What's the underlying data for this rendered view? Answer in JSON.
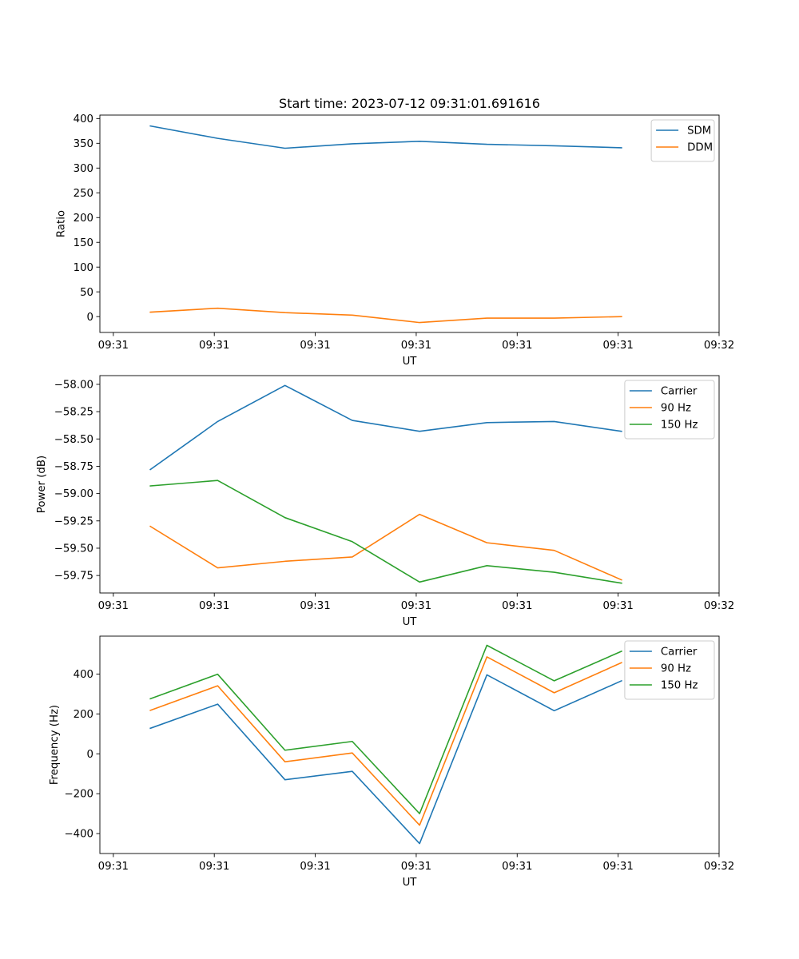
{
  "chart_data": [
    {
      "type": "line",
      "title": "Start time: 2023-07-12 09:31:01.691616",
      "xlabel": "UT",
      "ylabel": "Ratio",
      "x": [
        0,
        1,
        2,
        3,
        4,
        5,
        6,
        7
      ],
      "xlim": [
        -0.75,
        8.45
      ],
      "x_ticks": [
        -0.55,
        0.95,
        2.45,
        3.95,
        5.45,
        6.95,
        8.45
      ],
      "x_tick_labels": [
        "09:31",
        "09:31",
        "09:31",
        "09:31",
        "09:31",
        "09:31",
        "09:32"
      ],
      "ylim": [
        -32,
        407
      ],
      "y_ticks": [
        0,
        50,
        100,
        150,
        200,
        250,
        300,
        350,
        400
      ],
      "y_tick_labels": [
        "0",
        "50",
        "100",
        "150",
        "200",
        "250",
        "300",
        "350",
        "400"
      ],
      "legend_position": "top-right",
      "series": [
        {
          "name": "SDM",
          "color": "#1f77b4",
          "values": [
            385,
            360,
            340,
            349,
            354,
            348,
            345,
            341
          ]
        },
        {
          "name": "DDM",
          "color": "#ff7f0e",
          "values": [
            9,
            17,
            8,
            3,
            -12,
            -3,
            -3,
            0
          ]
        }
      ]
    },
    {
      "type": "line",
      "title": "",
      "xlabel": "UT",
      "ylabel": "Power (dB)",
      "x": [
        0,
        1,
        2,
        3,
        4,
        5,
        6,
        7
      ],
      "xlim": [
        -0.75,
        8.45
      ],
      "x_ticks": [
        -0.55,
        0.95,
        2.45,
        3.95,
        5.45,
        6.95,
        8.45
      ],
      "x_tick_labels": [
        "09:31",
        "09:31",
        "09:31",
        "09:31",
        "09:31",
        "09:31",
        "09:32"
      ],
      "ylim": [
        -59.91,
        -57.92
      ],
      "y_ticks": [
        -58.0,
        -58.25,
        -58.5,
        -58.75,
        -59.0,
        -59.25,
        -59.5,
        -59.75
      ],
      "y_tick_labels": [
        "−58.00",
        "−58.25",
        "−58.50",
        "−58.75",
        "−59.00",
        "−59.25",
        "−59.50",
        "−59.75"
      ],
      "legend_position": "top-right",
      "series": [
        {
          "name": "Carrier",
          "color": "#1f77b4",
          "values": [
            -58.78,
            -58.34,
            -58.01,
            -58.33,
            -58.43,
            -58.35,
            -58.34,
            -58.43
          ]
        },
        {
          "name": "90 Hz",
          "color": "#ff7f0e",
          "values": [
            -59.3,
            -59.68,
            -59.62,
            -59.58,
            -59.19,
            -59.45,
            -59.52,
            -59.79
          ]
        },
        {
          "name": "150 Hz",
          "color": "#2ca02c",
          "values": [
            -58.93,
            -58.88,
            -59.22,
            -59.44,
            -59.81,
            -59.66,
            -59.72,
            -59.82
          ]
        }
      ]
    },
    {
      "type": "line",
      "title": "",
      "xlabel": "UT",
      "ylabel": "Frequency (Hz)",
      "x": [
        0,
        1,
        2,
        3,
        4,
        5,
        6,
        7
      ],
      "xlim": [
        -0.75,
        8.45
      ],
      "x_ticks": [
        -0.55,
        0.95,
        2.45,
        3.95,
        5.45,
        6.95,
        8.45
      ],
      "x_tick_labels": [
        "09:31",
        "09:31",
        "09:31",
        "09:31",
        "09:31",
        "09:31",
        "09:32"
      ],
      "ylim": [
        -500,
        590
      ],
      "y_ticks": [
        400,
        200,
        0,
        -200,
        -400
      ],
      "y_tick_labels": [
        "400",
        "200",
        "0",
        "−200",
        "−400"
      ],
      "legend_position": "top-right",
      "series": [
        {
          "name": "Carrier",
          "color": "#1f77b4",
          "values": [
            128,
            249,
            -130,
            -88,
            -450,
            396,
            216,
            366
          ]
        },
        {
          "name": "90 Hz",
          "color": "#ff7f0e",
          "values": [
            218,
            341,
            -40,
            4,
            -358,
            486,
            306,
            457
          ]
        },
        {
          "name": "150 Hz",
          "color": "#2ca02c",
          "values": [
            276,
            399,
            18,
            62,
            -300,
            544,
            366,
            514
          ]
        }
      ]
    }
  ]
}
